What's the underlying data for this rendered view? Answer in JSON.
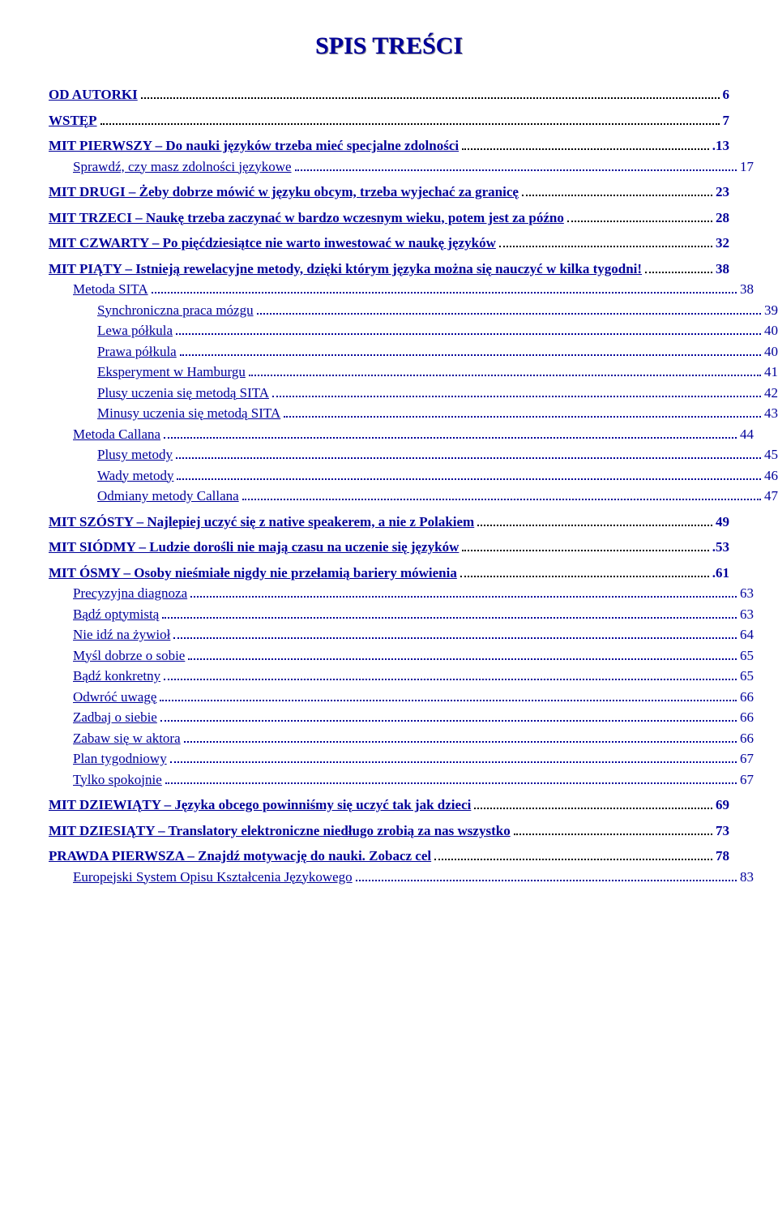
{
  "title": "SPIS TREŚCI",
  "colors": {
    "link": "#000099",
    "text": "#000000",
    "background": "#ffffff"
  },
  "fonts": {
    "family": "Georgia, 'Times New Roman', serif",
    "title_size": 30,
    "body_size": 17
  },
  "entries": [
    {
      "level": 0,
      "label": "OD AUTORKI",
      "page": "6"
    },
    {
      "level": 0,
      "label": "WSTĘP",
      "page": "7"
    },
    {
      "level": 0,
      "label": "MIT PIERWSZY – Do nauki języków trzeba mieć specjalne zdolności",
      "page": ".13"
    },
    {
      "level": 1,
      "label": "Sprawdź, czy masz zdolności językowe",
      "page": "17"
    },
    {
      "level": 0,
      "label": "MIT DRUGI – Żeby dobrze mówić w języku obcym, trzeba wyjechać za granicę",
      "page": "23"
    },
    {
      "level": 0,
      "label": "MIT TRZECI – Naukę trzeba zaczynać w bardzo wczesnym wieku, potem jest za późno",
      "page": "28"
    },
    {
      "level": 0,
      "label": "MIT CZWARTY – Po pięćdziesiątce nie warto inwestować w naukę języków",
      "page": "32"
    },
    {
      "level": 0,
      "label": "MIT PIĄTY – Istnieją rewelacyjne metody, dzięki którym języka można się nauczyć w kilka tygodni!",
      "page": "38"
    },
    {
      "level": 1,
      "label": "Metoda SITA",
      "page": "38"
    },
    {
      "level": 2,
      "label": "Synchroniczna praca mózgu",
      "page": "39"
    },
    {
      "level": 2,
      "label": "Lewa półkula",
      "page": "40"
    },
    {
      "level": 2,
      "label": "Prawa półkula",
      "page": "40"
    },
    {
      "level": 2,
      "label": "Eksperyment w Hamburgu",
      "page": "41"
    },
    {
      "level": 2,
      "label": "Plusy uczenia się metodą SITA",
      "page": "42"
    },
    {
      "level": 2,
      "label": "Minusy uczenia się metodą SITA",
      "page": "43"
    },
    {
      "level": 1,
      "label": "Metoda Callana",
      "page": "44"
    },
    {
      "level": 2,
      "label": "Plusy metody",
      "page": "45"
    },
    {
      "level": 2,
      "label": "Wady metody",
      "page": "46"
    },
    {
      "level": 2,
      "label": "Odmiany metody Callana",
      "page": "47"
    },
    {
      "level": 0,
      "label": "MIT SZÓSTY – Najlepiej uczyć się z native speakerem, a nie z Polakiem",
      "page": "49"
    },
    {
      "level": 0,
      "label": "MIT SIÓDMY – Ludzie dorośli nie mają czasu na uczenie się języków",
      "page": ".53"
    },
    {
      "level": 0,
      "label": "MIT ÓSMY – Osoby nieśmiałe nigdy nie przełamią bariery mówienia",
      "page": ".61"
    },
    {
      "level": 1,
      "label": "Precyzyjna diagnoza",
      "page": "63"
    },
    {
      "level": 1,
      "label": "Bądź optymistą",
      "page": "63"
    },
    {
      "level": 1,
      "label": "Nie idź na żywioł",
      "page": "64"
    },
    {
      "level": 1,
      "label": "Myśl dobrze o sobie",
      "page": "65"
    },
    {
      "level": 1,
      "label": "Bądź konkretny",
      "page": "65"
    },
    {
      "level": 1,
      "label": "Odwróć uwagę",
      "page": "66"
    },
    {
      "level": 1,
      "label": "Zadbaj o siebie",
      "page": "66"
    },
    {
      "level": 1,
      "label": "Zabaw się w aktora",
      "page": "66"
    },
    {
      "level": 1,
      "label": "Plan tygodniowy",
      "page": "67"
    },
    {
      "level": 1,
      "label": "Tylko spokojnie",
      "page": "67"
    },
    {
      "level": 0,
      "label": "MIT DZIEWIĄTY – Języka obcego powinniśmy się uczyć tak jak dzieci",
      "page": "69"
    },
    {
      "level": 0,
      "label": "MIT DZIESIĄTY – Translatory elektroniczne niedługo zrobią za nas wszystko",
      "page": "73"
    },
    {
      "level": 0,
      "label": "PRAWDA PIERWSZA – Znajdź motywację do nauki. Zobacz cel",
      "page": "78"
    },
    {
      "level": 1,
      "label": "Europejski System Opisu Kształcenia Językowego",
      "page": "83"
    }
  ]
}
